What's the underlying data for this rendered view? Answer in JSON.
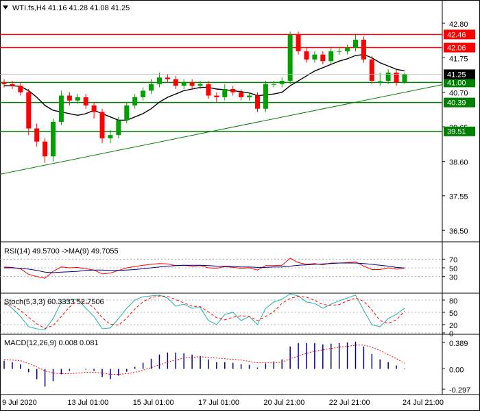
{
  "chart_data": [
    {
      "type": "candlestick",
      "title": "WTI.fs,H4  41.16 41.28 41.08 41.25",
      "categories": [
        "9 Jul 2020",
        null,
        null,
        null,
        null,
        null,
        null,
        null,
        "13 Jul 01:00",
        null,
        null,
        null,
        null,
        null,
        null,
        null,
        "15 Jul 01:00",
        null,
        null,
        null,
        null,
        null,
        null,
        null,
        "17 Jul 01:00",
        null,
        null,
        null,
        null,
        null,
        null,
        null,
        "20 Jul 21:00",
        null,
        null,
        null,
        null,
        null,
        null,
        null,
        "22 Jul 21:00",
        null,
        null,
        null,
        null,
        null,
        null,
        null,
        null,
        "24 Jul 21:00"
      ],
      "open": [
        41.0,
        40.95,
        40.9,
        40.7,
        39.6,
        39.2,
        38.75,
        39.8,
        40.6,
        40.45,
        40.55,
        40.3,
        40.1,
        39.3,
        39.4,
        39.85,
        40.3,
        40.55,
        40.75,
        40.95,
        41.15,
        41.1,
        40.9,
        41.0,
        40.9,
        40.95,
        40.6,
        40.55,
        40.8,
        40.7,
        40.55,
        40.6,
        40.2,
        40.95,
        40.95,
        41.05,
        42.45,
        41.95,
        41.7,
        41.85,
        41.65,
        41.95,
        41.95,
        42.05,
        42.3,
        41.7,
        41.05,
        41.05,
        41.3,
        41.0
      ],
      "high": [
        41.1,
        41.05,
        41.0,
        40.8,
        39.75,
        39.3,
        39.9,
        40.75,
        40.7,
        40.65,
        40.65,
        40.4,
        40.2,
        39.55,
        39.95,
        40.4,
        40.65,
        40.85,
        41.1,
        41.3,
        41.25,
        41.2,
        41.1,
        41.1,
        41.05,
        41.05,
        40.7,
        40.95,
        40.9,
        40.8,
        40.7,
        40.7,
        41.05,
        41.05,
        41.15,
        42.55,
        42.55,
        42.05,
        41.95,
        41.95,
        42.05,
        42.05,
        42.15,
        42.45,
        42.4,
        41.8,
        41.3,
        41.4,
        41.4,
        41.3
      ],
      "low": [
        40.85,
        40.8,
        40.6,
        39.4,
        39.05,
        38.55,
        38.6,
        39.7,
        40.3,
        40.35,
        40.2,
        39.9,
        39.15,
        39.15,
        39.3,
        39.75,
        40.2,
        40.45,
        40.65,
        40.85,
        41.0,
        40.8,
        40.8,
        40.8,
        40.8,
        40.5,
        40.4,
        40.45,
        40.6,
        40.45,
        40.45,
        40.1,
        40.1,
        40.85,
        40.85,
        40.95,
        41.85,
        41.6,
        41.6,
        41.55,
        41.55,
        41.85,
        41.85,
        41.95,
        41.6,
        40.95,
        40.9,
        40.95,
        40.9,
        40.95
      ],
      "close": [
        40.95,
        40.9,
        40.7,
        39.6,
        39.2,
        38.75,
        39.8,
        40.6,
        40.45,
        40.55,
        40.3,
        40.1,
        39.3,
        39.4,
        39.85,
        40.3,
        40.55,
        40.75,
        40.95,
        41.15,
        41.1,
        40.9,
        41.0,
        40.9,
        40.95,
        40.6,
        40.55,
        40.8,
        40.7,
        40.55,
        40.6,
        40.2,
        40.95,
        40.95,
        41.05,
        42.45,
        41.95,
        41.7,
        41.85,
        41.65,
        41.95,
        41.95,
        42.05,
        42.3,
        41.7,
        41.05,
        41.05,
        41.3,
        41.0,
        41.25
      ],
      "up_color": "#00a000",
      "down_color": "#ff0000",
      "series": [
        {
          "color": "#000000",
          "values": [
            40.9,
            40.9,
            40.88,
            40.75,
            40.55,
            40.3,
            40.15,
            40.1,
            40.05,
            40.0,
            40.05,
            40.15,
            40.05,
            39.95,
            39.85,
            39.85,
            39.95,
            40.05,
            40.2,
            40.4,
            40.55,
            40.65,
            40.75,
            40.8,
            40.85,
            40.85,
            40.8,
            40.78,
            40.75,
            40.72,
            40.68,
            40.6,
            40.62,
            40.65,
            40.7,
            40.9,
            41.05,
            41.2,
            41.35,
            41.45,
            41.55,
            41.65,
            41.72,
            41.82,
            41.85,
            41.75,
            41.6,
            41.5,
            41.4,
            41.35
          ]
        }
      ],
      "levels": [
        {
          "value": 42.46,
          "color": "#ff0000"
        },
        {
          "value": 42.06,
          "color": "#ff0000"
        },
        {
          "value": 41.0,
          "label": "41.00",
          "color": "#008000"
        },
        {
          "value": 40.39,
          "color": "#008000"
        },
        {
          "value": 39.51,
          "color": "#008000"
        }
      ],
      "current": {
        "value": 41.25,
        "color": "#000000"
      },
      "trendline": {
        "from": [
          0,
          38.23
        ],
        "to": [
          49,
          40.7
        ],
        "color": "#008000"
      },
      "ylim": [
        36.17,
        43.51
      ],
      "yticks": [
        {
          "value": 42.8,
          "label": "42.80"
        },
        41.75,
        {
          "value": 40.7,
          "label": "40.70"
        },
        39.65,
        {
          "value": 38.6,
          "label": "38.60"
        },
        37.55,
        {
          "value": 36.5,
          "label": "36.50"
        }
      ]
    },
    {
      "type": "line",
      "title": "RSI(14) 49.5700  ->MA(9) 49.7055",
      "series": [
        {
          "color": "#ff0000",
          "values": [
            52,
            51,
            48,
            35,
            30,
            26,
            42,
            52,
            50,
            51,
            48,
            45,
            36,
            38,
            44,
            50,
            53,
            56,
            58,
            60,
            59,
            55,
            56,
            54,
            55,
            50,
            49,
            53,
            51,
            49,
            50,
            45,
            55,
            55,
            56,
            72,
            62,
            58,
            60,
            57,
            61,
            61,
            62,
            64,
            54,
            46,
            46,
            50,
            47,
            49.57
          ]
        },
        {
          "color": "#000080",
          "values": [
            50,
            50,
            49,
            47,
            44,
            40,
            39,
            40,
            41,
            42,
            44,
            45,
            45,
            44,
            44,
            45,
            46,
            48,
            50,
            52,
            54,
            55,
            56,
            56,
            56,
            55,
            54,
            54,
            53,
            52,
            52,
            51,
            51,
            52,
            52,
            54,
            56,
            57,
            58,
            59,
            60,
            61,
            61,
            61,
            60,
            58,
            56,
            54,
            51,
            49.7055
          ]
        }
      ],
      "ylim": [
        -6.8,
        105.2
      ],
      "yticks": [
        30,
        50,
        70
      ],
      "grid": true
    },
    {
      "type": "line",
      "title": "Stoch(5,3,3) 60.3333 52.7506",
      "series": [
        {
          "color": "#20b2aa",
          "style": "solid",
          "values": [
            75,
            60,
            40,
            15,
            10,
            8,
            35,
            75,
            80,
            82,
            60,
            40,
            10,
            12,
            35,
            60,
            80,
            88,
            90,
            92,
            85,
            65,
            70,
            60,
            62,
            30,
            20,
            45,
            50,
            30,
            40,
            20,
            60,
            75,
            82,
            95,
            90,
            75,
            72,
            60,
            70,
            78,
            85,
            92,
            55,
            20,
            15,
            35,
            45,
            60.33
          ]
        },
        {
          "color": "#ff0000",
          "style": "dashed",
          "values": [
            70,
            68,
            55,
            38,
            22,
            11,
            18,
            40,
            63,
            79,
            74,
            61,
            37,
            21,
            19,
            36,
            58,
            76,
            86,
            90,
            89,
            81,
            73,
            65,
            64,
            51,
            37,
            32,
            38,
            42,
            40,
            30,
            40,
            52,
            72,
            84,
            89,
            87,
            79,
            69,
            67,
            69,
            78,
            85,
            77,
            56,
            30,
            23,
            32,
            52.75
          ]
        }
      ],
      "ylim": [
        -1.7,
        93.3
      ],
      "yticks": [
        0,
        20,
        50,
        80
      ],
      "grid": true
    },
    {
      "type": "macd",
      "title": "MACD(12,26,9) 0.008 0.081",
      "series": [
        {
          "kind": "bar",
          "color": "#000080",
          "values": [
            0.12,
            0.1,
            0.07,
            -0.05,
            -0.15,
            -0.26,
            -0.18,
            -0.08,
            -0.03,
            0.0,
            -0.01,
            -0.03,
            -0.12,
            -0.15,
            -0.1,
            -0.04,
            0.03,
            0.09,
            0.15,
            0.21,
            0.24,
            0.24,
            0.23,
            0.21,
            0.19,
            0.14,
            0.1,
            0.1,
            0.09,
            0.07,
            0.06,
            0.02,
            0.08,
            0.11,
            0.14,
            0.33,
            0.38,
            0.38,
            0.38,
            0.36,
            0.37,
            0.38,
            0.39,
            0.4,
            0.33,
            0.22,
            0.14,
            0.1,
            0.05,
            0.008
          ]
        },
        {
          "kind": "line",
          "color": "#ff0000",
          "style": "dotted",
          "values": [
            0.14,
            0.13,
            0.12,
            0.08,
            0.03,
            -0.03,
            -0.06,
            -0.07,
            -0.07,
            -0.06,
            -0.05,
            -0.05,
            -0.06,
            -0.08,
            -0.08,
            -0.07,
            -0.05,
            -0.02,
            0.02,
            0.06,
            0.1,
            0.13,
            0.16,
            0.17,
            0.18,
            0.17,
            0.16,
            0.15,
            0.14,
            0.13,
            0.11,
            0.09,
            0.09,
            0.09,
            0.1,
            0.15,
            0.19,
            0.23,
            0.26,
            0.28,
            0.3,
            0.32,
            0.33,
            0.35,
            0.35,
            0.32,
            0.27,
            0.21,
            0.15,
            0.081
          ]
        }
      ],
      "ylim": [
        -0.367,
        0.489
      ],
      "yticks": [
        -0.297,
        {
          "value": 0,
          "label": "0.00"
        },
        0.389
      ],
      "grid": false
    }
  ]
}
